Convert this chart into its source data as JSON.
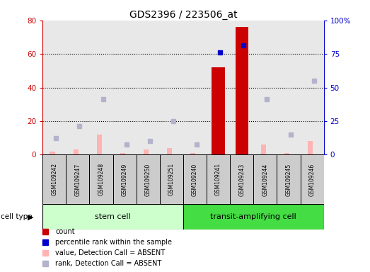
{
  "title": "GDS2396 / 223506_at",
  "samples": [
    "GSM109242",
    "GSM109247",
    "GSM109248",
    "GSM109249",
    "GSM109250",
    "GSM109251",
    "GSM109240",
    "GSM109241",
    "GSM109243",
    "GSM109244",
    "GSM109245",
    "GSM109246"
  ],
  "count_values": [
    0,
    0,
    0,
    0,
    0,
    0,
    0,
    52,
    76,
    0,
    0,
    0
  ],
  "percentile_rank": [
    null,
    null,
    null,
    null,
    null,
    null,
    null,
    61,
    65,
    null,
    null,
    null
  ],
  "absent_value": [
    2,
    3,
    12,
    1,
    3,
    4,
    1,
    null,
    null,
    6,
    1,
    8
  ],
  "absent_rank": [
    10,
    17,
    33,
    6,
    8,
    20,
    6,
    null,
    null,
    33,
    12,
    44
  ],
  "ylim_left": [
    0,
    80
  ],
  "ylim_right": [
    0,
    100
  ],
  "yticks_left": [
    0,
    20,
    40,
    60,
    80
  ],
  "yticks_right": [
    0,
    25,
    50,
    75,
    100
  ],
  "yticklabels_left": [
    "0",
    "20",
    "40",
    "60",
    "80"
  ],
  "yticklabels_right": [
    "0",
    "25",
    "50",
    "75",
    "100%"
  ],
  "count_color": "#cc0000",
  "percentile_color": "#0000cc",
  "absent_value_color": "#ffb3b3",
  "absent_rank_color": "#b3b3cc",
  "stem_cell_color": "#ccffcc",
  "transit_cell_color": "#44dd44",
  "background_color": "#ffffff",
  "plot_bg_color": "#e8e8e8",
  "sample_box_color": "#cccccc",
  "n_stem": 6,
  "n_transit": 6
}
